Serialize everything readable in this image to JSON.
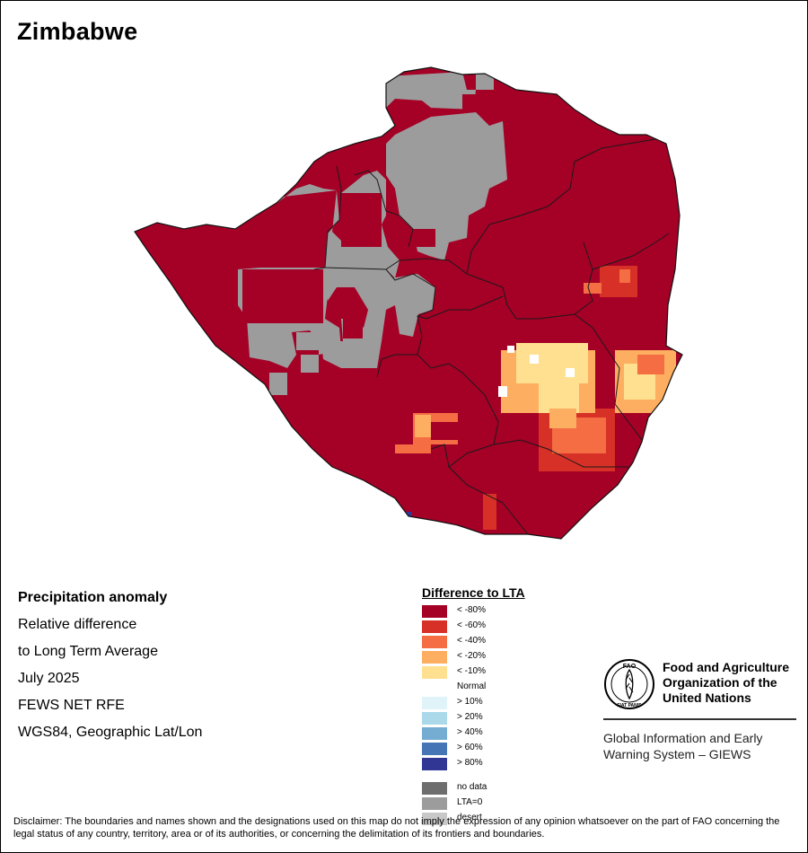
{
  "title": "Zimbabwe",
  "info": {
    "line1": "Precipitation anomaly",
    "line2": "Relative difference",
    "line3": "to Long Term Average",
    "line4": "July 2025",
    "line5": "FEWS NET RFE",
    "line6": "WGS84, Geographic Lat/Lon"
  },
  "legend": {
    "title": "Difference to LTA",
    "items": [
      {
        "label": "< -80%",
        "color": "#A50026"
      },
      {
        "label": "< -60%",
        "color": "#D73027"
      },
      {
        "label": "< -40%",
        "color": "#F46D43"
      },
      {
        "label": "< -20%",
        "color": "#FDAE61"
      },
      {
        "label": "< -10%",
        "color": "#FEE090"
      },
      {
        "label": "Normal",
        "color": "#FFFFFF"
      },
      {
        "label": "> 10%",
        "color": "#E0F3F8"
      },
      {
        "label": "> 20%",
        "color": "#ABD9E9"
      },
      {
        "label": "> 40%",
        "color": "#74ADD1"
      },
      {
        "label": "> 60%",
        "color": "#4575B4"
      },
      {
        "label": "> 80%",
        "color": "#313695"
      }
    ],
    "extra": [
      {
        "label": "no data",
        "color": "#6E6E6E"
      },
      {
        "label": "LTA=0",
        "color": "#9C9C9C"
      },
      {
        "label": "desert",
        "color": "#C8C8C8"
      }
    ]
  },
  "fao": {
    "logo_text": "FAO",
    "logo_motto": "FIAT PANIS",
    "name_line1": "Food and Agriculture",
    "name_line2": "Organization of the",
    "name_line3": "United Nations",
    "giews_line1": "Global Information and Early",
    "giews_line2": "Warning System – GIEWS"
  },
  "disclaimer": "Disclaimer: The boundaries and names shown and the designations used on this map do not imply the expression of any opinion whatsoever on the part of FAO concerning the legal status of any country, territory, area or of its authorities, or concerning the delimitation of its frontiers and boundaries.",
  "map_colors": {
    "dry": "#A50026",
    "lta_zero": "#9C9C9C",
    "border": "#1a1a1a"
  }
}
